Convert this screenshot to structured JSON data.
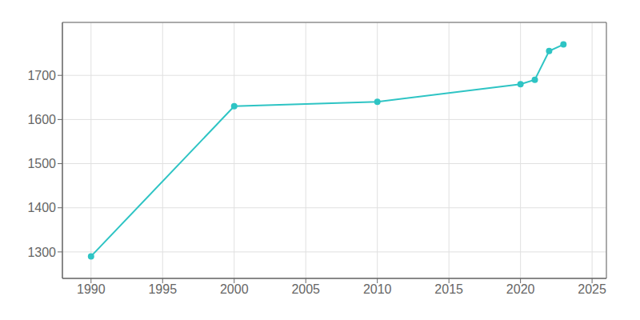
{
  "chart_data": {
    "type": "line",
    "x": [
      1990,
      2000,
      2010,
      2020,
      2021,
      2022,
      2023
    ],
    "values": [
      1290,
      1630,
      1640,
      1680,
      1690,
      1755,
      1770
    ],
    "color": "#2EC4C4",
    "marker": "circle",
    "xlim": [
      1988,
      2026
    ],
    "xticks": [
      1990,
      1995,
      2000,
      2005,
      2010,
      2015,
      2020,
      2025
    ],
    "ylim": [
      1240,
      1820
    ],
    "yticks": [
      1300,
      1400,
      1500,
      1600,
      1700
    ],
    "grid": true
  }
}
